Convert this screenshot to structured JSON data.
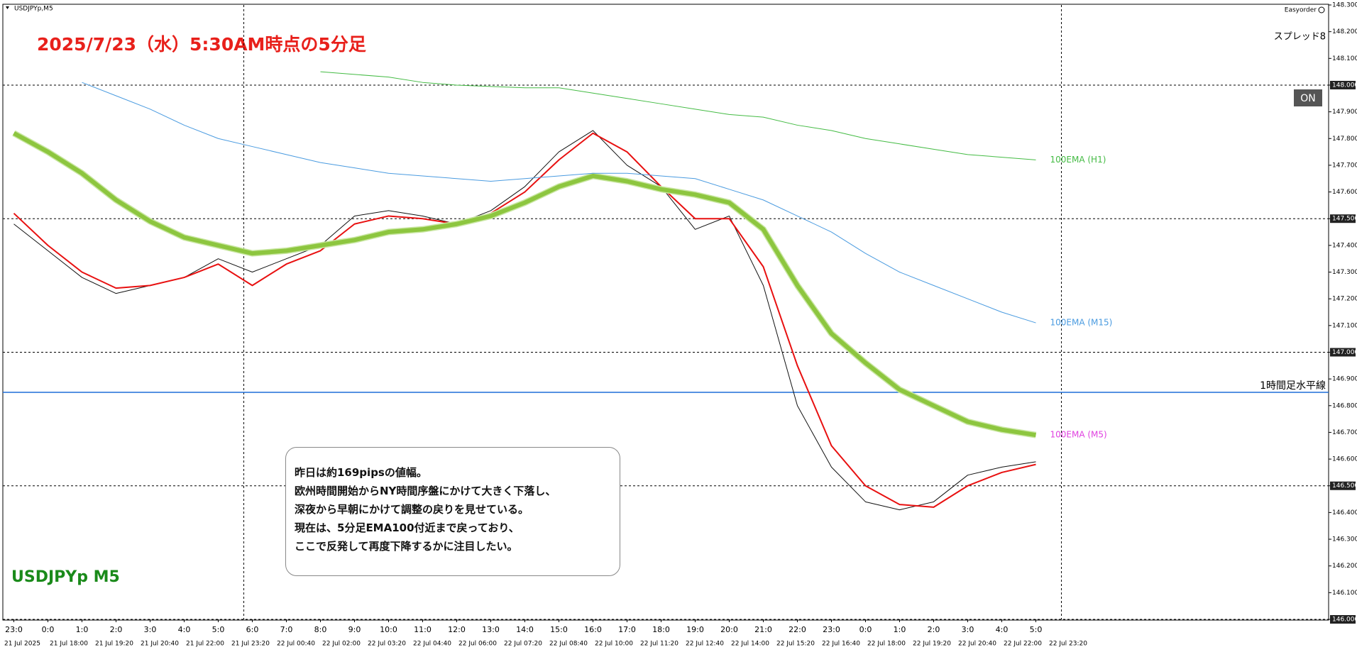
{
  "chart_data": {
    "type": "line",
    "symbol": "USDJPYp,M5",
    "broker_label": "Easyorder",
    "spread_label": "スプレッド8",
    "button": "ON",
    "title": "2025/7/23（水）5:30AM時点の5分足",
    "watermark": "USDJPYp M5",
    "note": [
      "昨日は約169pipsの値幅。",
      "欧州時間開始からNY時間序盤にかけて大きく下落し、",
      "深夜から早朝にかけて調整の戻りを見せている。",
      "現在は、5分足EMA100付近まで戻っており、",
      "ここで反発して再度下降するかに注目したい。"
    ],
    "categories": [
      "23:0",
      "0:0",
      "1:0",
      "2:0",
      "3:0",
      "4:0",
      "5:0",
      "6:0",
      "7:0",
      "8:0",
      "9:0",
      "10:0",
      "11:0",
      "12:0",
      "13:0",
      "14:0",
      "15:0",
      "16:0",
      "17:0",
      "18:0",
      "19:0",
      "20:0",
      "21:0",
      "22:0",
      "23:0",
      "0:0",
      "1:0",
      "2:0",
      "3:0",
      "4:0",
      "5:0"
    ],
    "date_labels": [
      "21 Jul 2025",
      "21 Jul 18:00",
      "21 Jul 19:20",
      "21 Jul 20:40",
      "21 Jul 22:00",
      "21 Jul 23:20",
      "22 Jul 00:40",
      "22 Jul 02:00",
      "22 Jul 03:20",
      "22 Jul 04:40",
      "22 Jul 06:00",
      "22 Jul 07:20",
      "22 Jul 08:40",
      "22 Jul 10:00",
      "22 Jul 11:20",
      "22 Jul 12:40",
      "22 Jul 14:00",
      "22 Jul 15:20",
      "22 Jul 16:40",
      "22 Jul 18:00",
      "22 Jul 19:20",
      "22 Jul 20:40",
      "22 Jul 22:00",
      "22 Jul 23:20"
    ],
    "series": [
      {
        "color": "#111111",
        "width": 1,
        "values": [
          147.48,
          147.38,
          147.28,
          147.22,
          147.25,
          147.28,
          147.35,
          147.3,
          147.35,
          147.4,
          147.51,
          147.53,
          147.51,
          147.48,
          147.53,
          147.62,
          147.75,
          147.83,
          147.7,
          147.62,
          147.46,
          147.51,
          147.25,
          146.8,
          146.57,
          146.44,
          146.41,
          146.44,
          146.54,
          146.57,
          146.59
        ]
      },
      {
        "color": "#e81010",
        "width": 2,
        "values": [
          147.52,
          147.4,
          147.3,
          147.24,
          147.25,
          147.28,
          147.33,
          147.25,
          147.33,
          147.38,
          147.48,
          147.51,
          147.5,
          147.48,
          147.52,
          147.6,
          147.72,
          147.82,
          147.75,
          147.62,
          147.5,
          147.5,
          147.32,
          146.95,
          146.65,
          146.5,
          146.43,
          146.42,
          146.5,
          146.55,
          146.58
        ]
      },
      {
        "name": "100EMA (M5)",
        "label_color": "#e040e0",
        "color": "#8dc63f",
        "width": 6,
        "values": [
          147.82,
          147.75,
          147.67,
          147.57,
          147.49,
          147.43,
          147.4,
          147.37,
          147.38,
          147.4,
          147.42,
          147.45,
          147.46,
          147.48,
          147.51,
          147.56,
          147.62,
          147.66,
          147.64,
          147.61,
          147.59,
          147.56,
          147.46,
          147.25,
          147.07,
          146.96,
          146.86,
          146.8,
          146.74,
          146.71,
          146.69
        ]
      },
      {
        "name": "100EMA (M15)",
        "label_color": "#4a9be0",
        "color": "#4a9be0",
        "width": 1,
        "values": [
          null,
          null,
          148.01,
          147.96,
          147.91,
          147.85,
          147.8,
          147.77,
          147.74,
          147.71,
          147.69,
          147.67,
          147.66,
          147.65,
          147.64,
          147.65,
          147.66,
          147.67,
          147.67,
          147.66,
          147.65,
          147.61,
          147.57,
          147.51,
          147.45,
          147.37,
          147.3,
          147.25,
          147.2,
          147.15,
          147.11
        ]
      },
      {
        "name": "100EMA (H1)",
        "label_color": "#44bb44",
        "color": "#44bb44",
        "width": 1,
        "values": [
          null,
          null,
          null,
          null,
          null,
          null,
          null,
          null,
          null,
          148.05,
          148.04,
          148.03,
          148.01,
          148.0,
          147.995,
          147.99,
          147.99,
          147.97,
          147.95,
          147.93,
          147.91,
          147.89,
          147.88,
          147.85,
          147.83,
          147.8,
          147.78,
          147.76,
          147.74,
          147.73,
          147.72
        ]
      }
    ],
    "hline": {
      "value": 146.85,
      "label": "1時間足水平線",
      "color": "#1e6fd9"
    },
    "ylim": [
      146.0,
      148.3
    ],
    "yticks": [
      {
        "value": 148.3,
        "label": "148.300"
      },
      {
        "value": 148.2,
        "label": "148.200"
      },
      {
        "value": 148.1,
        "label": "148.100"
      },
      {
        "value": 148.0,
        "label": "148.000"
      },
      {
        "value": 147.9,
        "label": "147.900"
      },
      {
        "value": 147.8,
        "label": "147.800"
      },
      {
        "value": 147.7,
        "label": "147.700"
      },
      {
        "value": 147.6,
        "label": "147.600"
      },
      {
        "value": 147.5,
        "label": "147.500"
      },
      {
        "value": 147.4,
        "label": "147.400"
      },
      {
        "value": 147.3,
        "label": "147.300"
      },
      {
        "value": 147.2,
        "label": "147.200"
      },
      {
        "value": 147.1,
        "label": "147.100"
      },
      {
        "value": 147.0,
        "label": "147.000"
      },
      {
        "value": 146.9,
        "label": "146.900"
      },
      {
        "value": 146.8,
        "label": "146.800"
      },
      {
        "value": 146.7,
        "label": "146.700"
      },
      {
        "value": 146.6,
        "label": "146.600"
      },
      {
        "value": 146.5,
        "label": "146.500"
      },
      {
        "value": 146.4,
        "label": "146.400"
      },
      {
        "value": 146.3,
        "label": "146.300"
      },
      {
        "value": 146.2,
        "label": "146.200"
      },
      {
        "value": 146.1,
        "label": "146.100"
      },
      {
        "value": 146.0,
        "label": "146.000"
      }
    ],
    "grid": true
  }
}
